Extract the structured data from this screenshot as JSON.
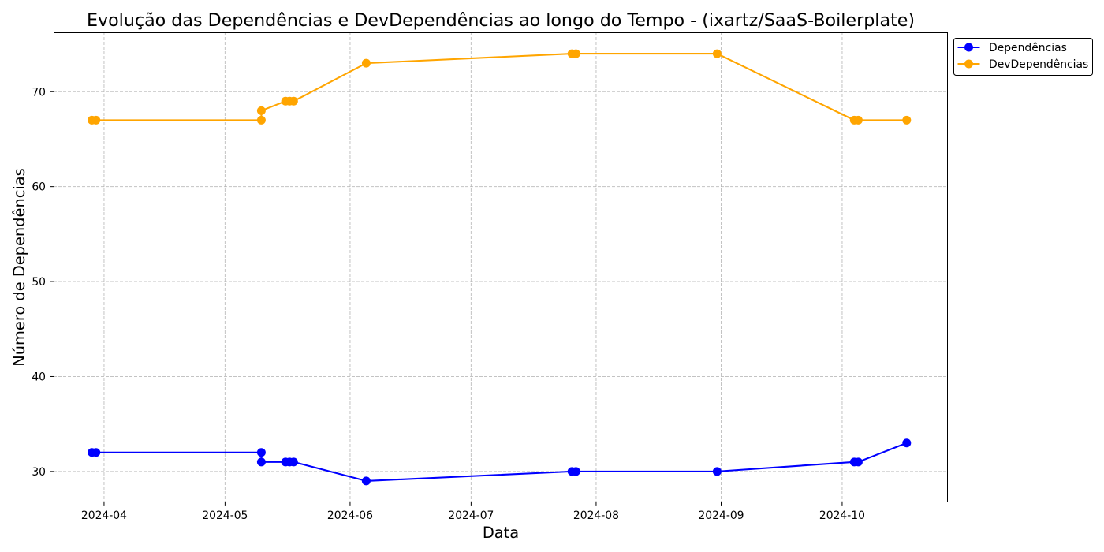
{
  "chart_data": {
    "type": "line",
    "title": "Evolução das Dependências e DevDependências ao longo do Tempo - (ixartz/SaaS-Boilerplate)",
    "xlabel": "Data",
    "ylabel": "Número de Dependências",
    "x": [
      "2024-03-29",
      "2024-03-30",
      "2024-05-10",
      "2024-05-10",
      "2024-05-16",
      "2024-05-17",
      "2024-05-18",
      "2024-06-05",
      "2024-07-26",
      "2024-07-27",
      "2024-08-31",
      "2024-10-04",
      "2024-10-05",
      "2024-10-17"
    ],
    "series": [
      {
        "name": "Dependências",
        "color": "#0000ff",
        "values": [
          32,
          32,
          32,
          31,
          31,
          31,
          31,
          29,
          30,
          30,
          30,
          31,
          31,
          33
        ]
      },
      {
        "name": "DevDependências",
        "color": "#ffa500",
        "values": [
          67,
          67,
          67,
          68,
          69,
          69,
          69,
          73,
          74,
          74,
          74,
          67,
          67,
          67
        ]
      }
    ],
    "xlim": [
      "2024-03-19T12:00",
      "2024-10-27T05:00"
    ],
    "ylim": [
      26.75,
      76.25
    ],
    "xticks": [
      "2024-04",
      "2024-05",
      "2024-06",
      "2024-07",
      "2024-08",
      "2024-09",
      "2024-10"
    ],
    "yticks": [
      30,
      40,
      50,
      60,
      70
    ],
    "grid": true,
    "legend_position": "outside-top-right"
  }
}
